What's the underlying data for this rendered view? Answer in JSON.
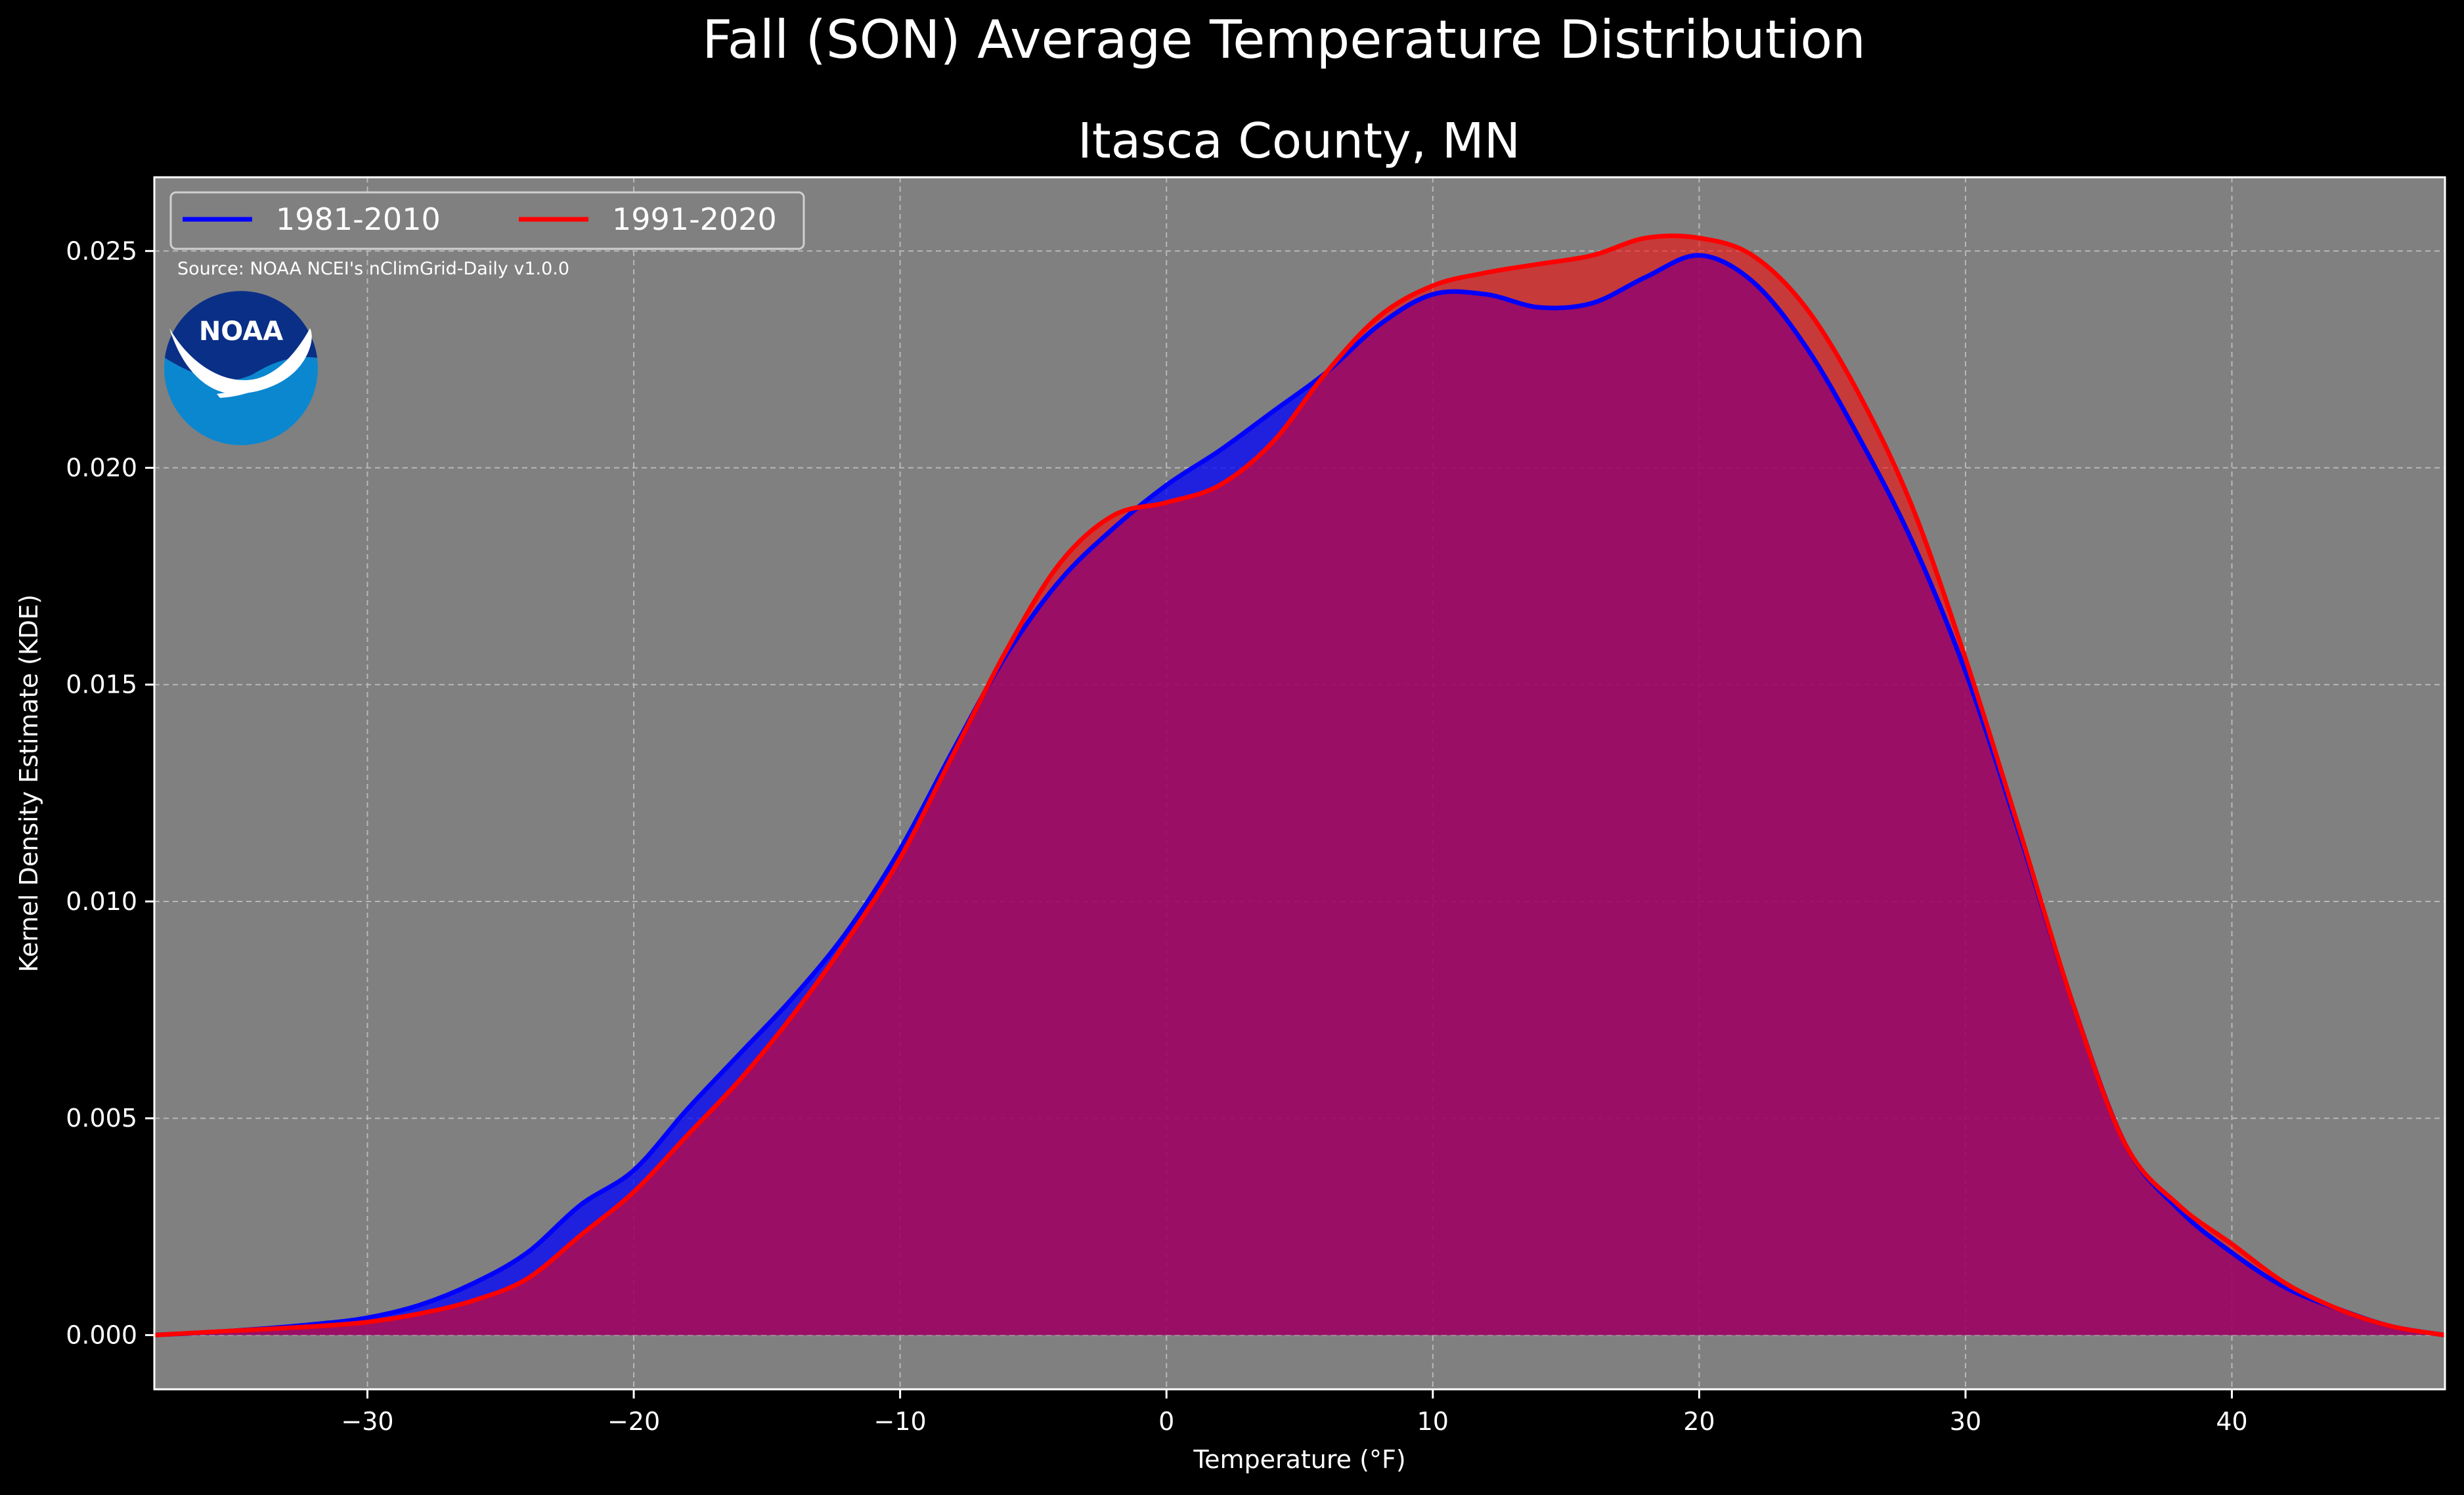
{
  "chart_data": {
    "type": "area",
    "title": "Fall (SON) Average Temperature Distribution",
    "subtitle": "Itasca County, MN",
    "xlabel": "Temperature (°F)",
    "ylabel": "Kernel Density Estimate (KDE)",
    "xlim": [
      -38,
      48
    ],
    "ylim": [
      -0.00125,
      0.0267
    ],
    "xticks": [
      -30,
      -20,
      -10,
      0,
      10,
      20,
      30,
      40
    ],
    "xtick_labels": [
      "−30",
      "−20",
      "−10",
      "0",
      "10",
      "20",
      "30",
      "40"
    ],
    "yticks": [
      0.0,
      0.005,
      0.01,
      0.015,
      0.02,
      0.025
    ],
    "ytick_labels": [
      "0.000",
      "0.005",
      "0.010",
      "0.015",
      "0.020",
      "0.025"
    ],
    "grid": true,
    "legend_position": "top-left",
    "background_color": "#808080",
    "source_note": "Source: NOAA NCEI's nClimGrid-Daily v1.0.0",
    "logo_text": "NOAA",
    "series": [
      {
        "name": "1981-2010",
        "color": "#0000ff",
        "fill_color": "#0000ff",
        "x": [
          -38,
          -35,
          -32,
          -30,
          -28,
          -26,
          -24,
          -22,
          -20,
          -18,
          -16,
          -14,
          -12,
          -10,
          -8,
          -6,
          -4,
          -2,
          0,
          2,
          4,
          6,
          8,
          10,
          12,
          14,
          16,
          18,
          20,
          22,
          24,
          26,
          28,
          30,
          32,
          34,
          36,
          38,
          40,
          42,
          44,
          46,
          48
        ],
        "values": [
          0.0,
          0.0001,
          0.00025,
          0.0004,
          0.0007,
          0.0012,
          0.0019,
          0.003,
          0.0038,
          0.0052,
          0.0065,
          0.0078,
          0.0093,
          0.0112,
          0.0135,
          0.0157,
          0.0174,
          0.0186,
          0.0196,
          0.0204,
          0.0213,
          0.0222,
          0.0233,
          0.024,
          0.024,
          0.0237,
          0.0238,
          0.0244,
          0.0249,
          0.0243,
          0.0228,
          0.0207,
          0.0183,
          0.0153,
          0.0116,
          0.0077,
          0.0044,
          0.0029,
          0.0019,
          0.0011,
          0.0006,
          0.0002,
          0.0
        ]
      },
      {
        "name": "1991-2020",
        "color": "#ff0000",
        "fill_color": "#ff0000",
        "x": [
          -38,
          -35,
          -32,
          -30,
          -28,
          -26,
          -24,
          -22,
          -20,
          -18,
          -16,
          -14,
          -12,
          -10,
          -8,
          -6,
          -4,
          -2,
          0,
          2,
          4,
          6,
          8,
          10,
          12,
          14,
          16,
          18,
          20,
          22,
          24,
          26,
          28,
          30,
          32,
          34,
          36,
          38,
          40,
          42,
          44,
          46,
          48
        ],
        "values": [
          0.0,
          0.0001,
          0.0002,
          0.0003,
          0.0005,
          0.0008,
          0.0013,
          0.0023,
          0.0033,
          0.0046,
          0.0059,
          0.0074,
          0.0091,
          0.011,
          0.0134,
          0.0158,
          0.0178,
          0.0189,
          0.0192,
          0.0196,
          0.0206,
          0.0222,
          0.0235,
          0.0242,
          0.0245,
          0.0247,
          0.0249,
          0.0253,
          0.0253,
          0.0249,
          0.0237,
          0.0217,
          0.0191,
          0.0156,
          0.0117,
          0.0077,
          0.0044,
          0.003,
          0.0021,
          0.0012,
          0.0006,
          0.0002,
          0.0
        ]
      }
    ]
  }
}
